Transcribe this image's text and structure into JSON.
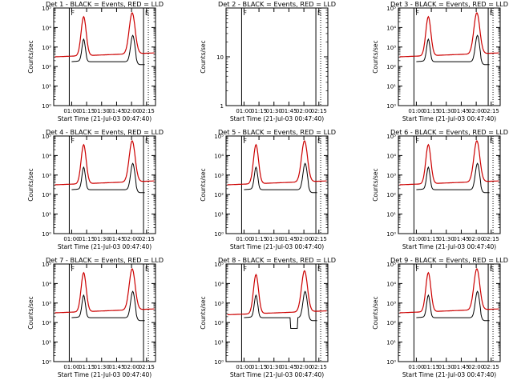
{
  "chart_data": [
    {
      "type": "line",
      "title": "Det 1 - BLACK = Events, RED = LLD",
      "ylabel": "Counts/sec",
      "xlabel": "Start Time (21-Jul-03 00:47:40)",
      "yscale": "log",
      "ylim": [
        1,
        100000
      ],
      "yticks": [
        "10⁰",
        "10¹",
        "10²",
        "10³",
        "10⁴",
        "10⁵"
      ],
      "xticks": [
        "01:00",
        "01:15",
        "01:30",
        "01:45",
        "02:00",
        "02:15"
      ],
      "series": [
        {
          "name": "Events",
          "color": "#000000"
        },
        {
          "name": "LLD",
          "color": "#cc0000"
        }
      ]
    },
    {
      "type": "line",
      "title": "Det 2 - BLACK = Events, RED = LLD",
      "ylabel": "Counts/sec",
      "xlabel": "Start Time (21-Jul-03 00:47:40)",
      "yscale": "log",
      "ylim": [
        1,
        100
      ],
      "yticks": [
        "1",
        "10"
      ],
      "xticks": [
        "01:00",
        "01:15",
        "01:30",
        "01:45",
        "02:00",
        "02:15"
      ],
      "series": [
        {
          "name": "Events",
          "color": "#000000"
        },
        {
          "name": "LLD",
          "color": "#cc0000"
        }
      ]
    },
    {
      "type": "line",
      "title": "Det 3 - BLACK = Events, RED = LLD",
      "ylabel": "Counts/sec",
      "xlabel": "Start Time (21-Jul-03 00:47:40)",
      "yscale": "log",
      "ylim": [
        1,
        100000
      ],
      "yticks": [
        "10⁰",
        "10¹",
        "10²",
        "10³",
        "10⁴",
        "10⁵"
      ],
      "xticks": [
        "01:00",
        "01:15",
        "01:30",
        "01:45",
        "02:00",
        "02:15"
      ],
      "series": [
        {
          "name": "Events",
          "color": "#000000"
        },
        {
          "name": "LLD",
          "color": "#cc0000"
        }
      ]
    },
    {
      "type": "line",
      "title": "Det 4 - BLACK = Events, RED = LLD",
      "ylabel": "Counts/sec",
      "xlabel": "Start Time (21-Jul-03 00:47:40)",
      "yscale": "log",
      "ylim": [
        1,
        100000
      ],
      "yticks": [
        "10⁰",
        "10¹",
        "10²",
        "10³",
        "10⁴",
        "10⁵"
      ],
      "xticks": [
        "01:00",
        "01:15",
        "01:30",
        "01:45",
        "02:00",
        "02:15"
      ],
      "series": [
        {
          "name": "Events",
          "color": "#000000"
        },
        {
          "name": "LLD",
          "color": "#cc0000"
        }
      ]
    },
    {
      "type": "line",
      "title": "Det 5 - BLACK = Events, RED = LLD",
      "ylabel": "Counts/sec",
      "xlabel": "Start Time (21-Jul-03 00:47:40)",
      "yscale": "log",
      "ylim": [
        1,
        100000
      ],
      "yticks": [
        "10⁰",
        "10¹",
        "10²",
        "10³",
        "10⁴",
        "10⁵"
      ],
      "xticks": [
        "01:00",
        "01:15",
        "01:30",
        "01:45",
        "02:00",
        "02:15"
      ],
      "series": [
        {
          "name": "Events",
          "color": "#000000"
        },
        {
          "name": "LLD",
          "color": "#cc0000"
        }
      ]
    },
    {
      "type": "line",
      "title": "Det 6 - BLACK = Events, RED = LLD",
      "ylabel": "Counts/sec",
      "xlabel": "Start Time (21-Jul-03 00:47:40)",
      "yscale": "log",
      "ylim": [
        1,
        100000
      ],
      "yticks": [
        "10⁰",
        "10¹",
        "10²",
        "10³",
        "10⁴",
        "10⁵"
      ],
      "xticks": [
        "01:00",
        "01:15",
        "01:30",
        "01:45",
        "02:00",
        "02:15"
      ],
      "series": [
        {
          "name": "Events",
          "color": "#000000"
        },
        {
          "name": "LLD",
          "color": "#cc0000"
        }
      ]
    },
    {
      "type": "line",
      "title": "Det 7 - BLACK = Events, RED = LLD",
      "ylabel": "Counts/sec",
      "xlabel": "Start Time (21-Jul-03 00:47:40)",
      "yscale": "log",
      "ylim": [
        1,
        100000
      ],
      "yticks": [
        "10⁰",
        "10¹",
        "10²",
        "10³",
        "10⁴",
        "10⁵"
      ],
      "xticks": [
        "01:00",
        "01:15",
        "01:30",
        "01:45",
        "02:00",
        "02:15"
      ],
      "series": [
        {
          "name": "Events",
          "color": "#000000"
        },
        {
          "name": "LLD",
          "color": "#cc0000"
        }
      ]
    },
    {
      "type": "line",
      "title": "Det 8 - BLACK = Events, RED = LLD",
      "ylabel": "Counts/sec",
      "xlabel": "Start Time (21-Jul-03 00:47:40)",
      "yscale": "log",
      "ylim": [
        1,
        100000
      ],
      "yticks": [
        "10⁰",
        "10¹",
        "10²",
        "10³",
        "10⁴",
        "10⁵"
      ],
      "xticks": [
        "01:00",
        "01:15",
        "01:30",
        "01:45",
        "02:00",
        "02:15"
      ],
      "series": [
        {
          "name": "Events",
          "color": "#000000"
        },
        {
          "name": "LLD",
          "color": "#cc0000"
        }
      ]
    },
    {
      "type": "line",
      "title": "Det 9 - BLACK = Events, RED = LLD",
      "ylabel": "Counts/sec",
      "xlabel": "Start Time (21-Jul-03 00:47:40)",
      "yscale": "log",
      "ylim": [
        1,
        100000
      ],
      "yticks": [
        "10⁰",
        "10¹",
        "10²",
        "10³",
        "10⁴",
        "10⁵"
      ],
      "xticks": [
        "01:00",
        "01:15",
        "01:30",
        "01:45",
        "02:00",
        "02:15"
      ],
      "series": [
        {
          "name": "Events",
          "color": "#000000"
        },
        {
          "name": "LLD",
          "color": "#cc0000"
        }
      ]
    }
  ],
  "markers": {
    "labels": [
      "F",
      "E"
    ]
  },
  "colors": {
    "events": "#000000",
    "lld": "#cc0000",
    "axes": "#000000",
    "background": "#ffffff"
  }
}
